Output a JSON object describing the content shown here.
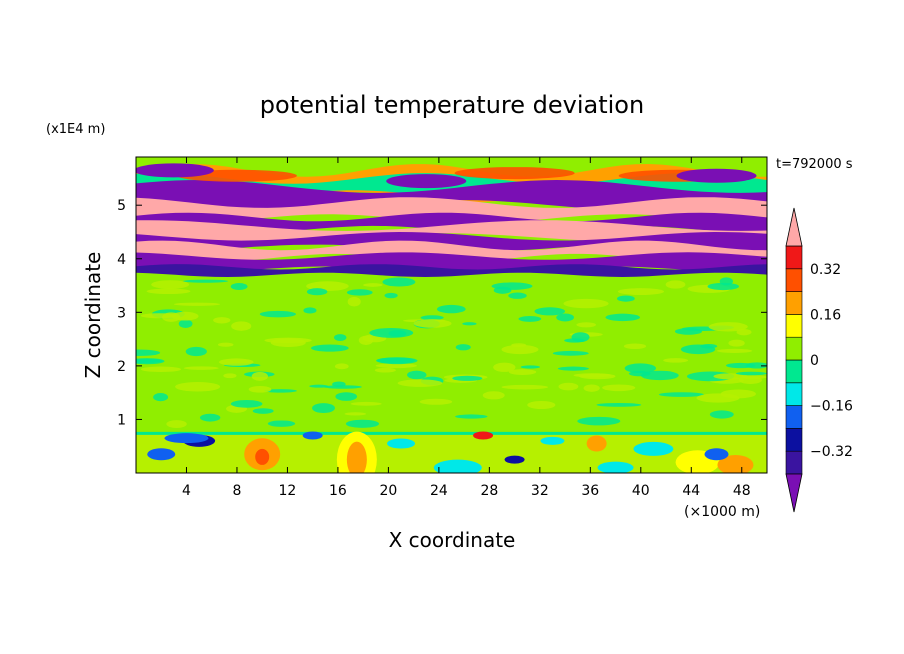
{
  "chart_data": {
    "type": "heatmap",
    "title": "potential temperature deviation",
    "xlabel": "X coordinate",
    "ylabel": "Z coordinate",
    "x_unit": "(×1000 m)",
    "y_unit": "(x1E4 m)",
    "time_label": "t=792000 s",
    "xlim": [
      0,
      50
    ],
    "ylim": [
      0,
      5.9
    ],
    "x_ticks": [
      4,
      8,
      12,
      16,
      20,
      24,
      28,
      32,
      36,
      40,
      44,
      48
    ],
    "y_ticks": [
      1,
      2,
      3,
      4,
      5
    ],
    "colorbar": {
      "levels": [
        -0.4,
        -0.32,
        -0.24,
        -0.16,
        -0.08,
        0,
        0.08,
        0.16,
        0.24,
        0.32,
        0.4
      ],
      "labels": [
        "0.32",
        "0.16",
        "0",
        "−0.16",
        "−0.32"
      ],
      "label_values": [
        0.32,
        0.16,
        0,
        -0.16,
        -0.32
      ],
      "colors": [
        "#7a0fb4",
        "#3a14a0",
        "#0c10a0",
        "#1060f0",
        "#00e8e8",
        "#00e890",
        "#90ee00",
        "#ffff00",
        "#ffa000",
        "#ff5000",
        "#f01818",
        "#ffa8a8"
      ],
      "extend": "both"
    },
    "description": "Filled contour field: near-zero (green) over most of the domain; alternating strong negative (purple) and positive (pink) horizontal bands between z≈3.7 and 5.5; small positive (orange/yellow) and negative (blue/cyan) patches below z≈0.8"
  }
}
